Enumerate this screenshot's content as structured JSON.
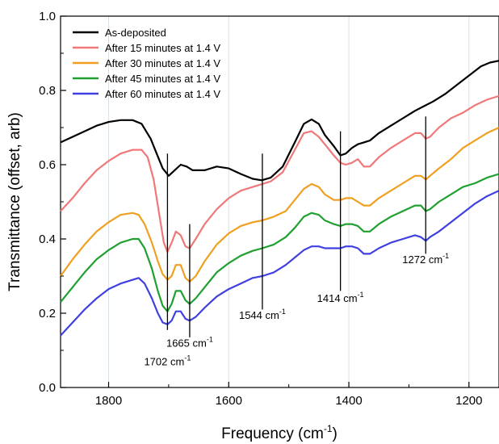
{
  "chart_data": {
    "type": "line",
    "title": "",
    "xlabel": "Frequency (cm",
    "xlabel_sup": "-1",
    "xlabel_close": ")",
    "ylabel": "Transmittance (offset, arb)",
    "xlim": [
      1880,
      1150
    ],
    "ylim": [
      0.0,
      1.0
    ],
    "x_reversed": true,
    "x_ticks": [
      1800,
      1600,
      1400,
      1200
    ],
    "x_tick_labels": [
      "1800",
      "1600",
      "1400",
      "1200"
    ],
    "y_ticks": [
      0.0,
      0.2,
      0.4,
      0.6,
      0.8,
      1.0
    ],
    "y_tick_labels": [
      "0.0",
      "0.2",
      "0.4",
      "0.6",
      "0.8",
      "1.0"
    ],
    "grid": "vertical-minor",
    "legend_position": "top-left",
    "series": [
      {
        "name": "As-deposited",
        "color": "#000000",
        "points": [
          [
            1880,
            0.66
          ],
          [
            1860,
            0.675
          ],
          [
            1840,
            0.69
          ],
          [
            1820,
            0.705
          ],
          [
            1800,
            0.715
          ],
          [
            1780,
            0.72
          ],
          [
            1760,
            0.72
          ],
          [
            1745,
            0.71
          ],
          [
            1730,
            0.67
          ],
          [
            1720,
            0.63
          ],
          [
            1710,
            0.59
          ],
          [
            1700,
            0.57
          ],
          [
            1690,
            0.585
          ],
          [
            1680,
            0.6
          ],
          [
            1670,
            0.595
          ],
          [
            1660,
            0.585
          ],
          [
            1640,
            0.585
          ],
          [
            1620,
            0.595
          ],
          [
            1600,
            0.59
          ],
          [
            1580,
            0.575
          ],
          [
            1560,
            0.562
          ],
          [
            1545,
            0.558
          ],
          [
            1530,
            0.565
          ],
          [
            1510,
            0.595
          ],
          [
            1490,
            0.66
          ],
          [
            1475,
            0.71
          ],
          [
            1462,
            0.722
          ],
          [
            1450,
            0.71
          ],
          [
            1440,
            0.68
          ],
          [
            1425,
            0.65
          ],
          [
            1414,
            0.625
          ],
          [
            1405,
            0.63
          ],
          [
            1395,
            0.645
          ],
          [
            1385,
            0.655
          ],
          [
            1375,
            0.66
          ],
          [
            1365,
            0.665
          ],
          [
            1350,
            0.685
          ],
          [
            1330,
            0.705
          ],
          [
            1310,
            0.725
          ],
          [
            1290,
            0.745
          ],
          [
            1272,
            0.76
          ],
          [
            1260,
            0.77
          ],
          [
            1240,
            0.79
          ],
          [
            1220,
            0.815
          ],
          [
            1200,
            0.84
          ],
          [
            1180,
            0.865
          ],
          [
            1165,
            0.875
          ],
          [
            1150,
            0.88
          ]
        ]
      },
      {
        "name": "After 15 minutes at 1.4 V",
        "color": "#f07878",
        "points": [
          [
            1880,
            0.475
          ],
          [
            1860,
            0.51
          ],
          [
            1840,
            0.55
          ],
          [
            1820,
            0.585
          ],
          [
            1800,
            0.61
          ],
          [
            1780,
            0.63
          ],
          [
            1760,
            0.64
          ],
          [
            1745,
            0.64
          ],
          [
            1735,
            0.62
          ],
          [
            1725,
            0.56
          ],
          [
            1715,
            0.46
          ],
          [
            1708,
            0.39
          ],
          [
            1702,
            0.365
          ],
          [
            1695,
            0.39
          ],
          [
            1688,
            0.42
          ],
          [
            1680,
            0.41
          ],
          [
            1672,
            0.38
          ],
          [
            1665,
            0.375
          ],
          [
            1655,
            0.4
          ],
          [
            1640,
            0.44
          ],
          [
            1620,
            0.48
          ],
          [
            1600,
            0.51
          ],
          [
            1580,
            0.53
          ],
          [
            1560,
            0.54
          ],
          [
            1544,
            0.548
          ],
          [
            1530,
            0.555
          ],
          [
            1510,
            0.58
          ],
          [
            1490,
            0.64
          ],
          [
            1475,
            0.685
          ],
          [
            1462,
            0.69
          ],
          [
            1450,
            0.675
          ],
          [
            1440,
            0.655
          ],
          [
            1425,
            0.625
          ],
          [
            1414,
            0.605
          ],
          [
            1405,
            0.6
          ],
          [
            1395,
            0.605
          ],
          [
            1385,
            0.615
          ],
          [
            1375,
            0.595
          ],
          [
            1365,
            0.595
          ],
          [
            1350,
            0.62
          ],
          [
            1330,
            0.645
          ],
          [
            1310,
            0.665
          ],
          [
            1290,
            0.685
          ],
          [
            1280,
            0.685
          ],
          [
            1272,
            0.67
          ],
          [
            1265,
            0.675
          ],
          [
            1250,
            0.7
          ],
          [
            1230,
            0.725
          ],
          [
            1210,
            0.74
          ],
          [
            1190,
            0.76
          ],
          [
            1170,
            0.775
          ],
          [
            1150,
            0.785
          ]
        ]
      },
      {
        "name": "After 30 minutes at 1.4 V",
        "color": "#f0a020",
        "points": [
          [
            1880,
            0.3
          ],
          [
            1860,
            0.345
          ],
          [
            1840,
            0.385
          ],
          [
            1820,
            0.42
          ],
          [
            1800,
            0.445
          ],
          [
            1780,
            0.465
          ],
          [
            1760,
            0.47
          ],
          [
            1750,
            0.465
          ],
          [
            1740,
            0.44
          ],
          [
            1728,
            0.39
          ],
          [
            1718,
            0.34
          ],
          [
            1710,
            0.305
          ],
          [
            1702,
            0.29
          ],
          [
            1695,
            0.3
          ],
          [
            1688,
            0.33
          ],
          [
            1680,
            0.33
          ],
          [
            1672,
            0.295
          ],
          [
            1665,
            0.285
          ],
          [
            1655,
            0.3
          ],
          [
            1640,
            0.34
          ],
          [
            1620,
            0.385
          ],
          [
            1600,
            0.415
          ],
          [
            1580,
            0.435
          ],
          [
            1560,
            0.445
          ],
          [
            1544,
            0.45
          ],
          [
            1525,
            0.46
          ],
          [
            1505,
            0.475
          ],
          [
            1490,
            0.505
          ],
          [
            1475,
            0.535
          ],
          [
            1462,
            0.548
          ],
          [
            1450,
            0.54
          ],
          [
            1440,
            0.52
          ],
          [
            1425,
            0.505
          ],
          [
            1414,
            0.505
          ],
          [
            1405,
            0.51
          ],
          [
            1395,
            0.51
          ],
          [
            1385,
            0.5
          ],
          [
            1375,
            0.49
          ],
          [
            1365,
            0.49
          ],
          [
            1350,
            0.51
          ],
          [
            1330,
            0.53
          ],
          [
            1310,
            0.55
          ],
          [
            1290,
            0.57
          ],
          [
            1280,
            0.57
          ],
          [
            1272,
            0.56
          ],
          [
            1265,
            0.57
          ],
          [
            1250,
            0.59
          ],
          [
            1230,
            0.615
          ],
          [
            1210,
            0.645
          ],
          [
            1190,
            0.665
          ],
          [
            1170,
            0.685
          ],
          [
            1150,
            0.7
          ]
        ]
      },
      {
        "name": "After 45 minutes at 1.4 V",
        "color": "#20a030",
        "points": [
          [
            1880,
            0.23
          ],
          [
            1860,
            0.27
          ],
          [
            1840,
            0.31
          ],
          [
            1820,
            0.345
          ],
          [
            1800,
            0.37
          ],
          [
            1780,
            0.39
          ],
          [
            1760,
            0.4
          ],
          [
            1750,
            0.4
          ],
          [
            1740,
            0.375
          ],
          [
            1728,
            0.32
          ],
          [
            1718,
            0.26
          ],
          [
            1710,
            0.22
          ],
          [
            1702,
            0.205
          ],
          [
            1695,
            0.225
          ],
          [
            1688,
            0.26
          ],
          [
            1680,
            0.26
          ],
          [
            1672,
            0.235
          ],
          [
            1665,
            0.225
          ],
          [
            1655,
            0.24
          ],
          [
            1640,
            0.27
          ],
          [
            1620,
            0.31
          ],
          [
            1600,
            0.335
          ],
          [
            1580,
            0.355
          ],
          [
            1560,
            0.368
          ],
          [
            1544,
            0.375
          ],
          [
            1525,
            0.385
          ],
          [
            1505,
            0.405
          ],
          [
            1490,
            0.43
          ],
          [
            1475,
            0.46
          ],
          [
            1462,
            0.47
          ],
          [
            1450,
            0.465
          ],
          [
            1440,
            0.45
          ],
          [
            1425,
            0.44
          ],
          [
            1414,
            0.435
          ],
          [
            1405,
            0.44
          ],
          [
            1395,
            0.44
          ],
          [
            1385,
            0.435
          ],
          [
            1375,
            0.42
          ],
          [
            1365,
            0.42
          ],
          [
            1350,
            0.44
          ],
          [
            1330,
            0.46
          ],
          [
            1310,
            0.475
          ],
          [
            1290,
            0.49
          ],
          [
            1280,
            0.49
          ],
          [
            1272,
            0.475
          ],
          [
            1265,
            0.48
          ],
          [
            1250,
            0.5
          ],
          [
            1230,
            0.52
          ],
          [
            1210,
            0.54
          ],
          [
            1190,
            0.55
          ],
          [
            1170,
            0.565
          ],
          [
            1150,
            0.575
          ]
        ]
      },
      {
        "name": "After 60 minutes at 1.4 V",
        "color": "#4040e0",
        "points": [
          [
            1880,
            0.14
          ],
          [
            1860,
            0.175
          ],
          [
            1840,
            0.21
          ],
          [
            1820,
            0.24
          ],
          [
            1800,
            0.265
          ],
          [
            1780,
            0.28
          ],
          [
            1760,
            0.29
          ],
          [
            1750,
            0.295
          ],
          [
            1740,
            0.28
          ],
          [
            1728,
            0.24
          ],
          [
            1718,
            0.2
          ],
          [
            1710,
            0.175
          ],
          [
            1702,
            0.17
          ],
          [
            1695,
            0.18
          ],
          [
            1688,
            0.205
          ],
          [
            1680,
            0.205
          ],
          [
            1672,
            0.185
          ],
          [
            1665,
            0.18
          ],
          [
            1655,
            0.19
          ],
          [
            1640,
            0.215
          ],
          [
            1620,
            0.245
          ],
          [
            1600,
            0.265
          ],
          [
            1580,
            0.28
          ],
          [
            1560,
            0.295
          ],
          [
            1544,
            0.3
          ],
          [
            1525,
            0.31
          ],
          [
            1505,
            0.33
          ],
          [
            1490,
            0.35
          ],
          [
            1475,
            0.37
          ],
          [
            1462,
            0.38
          ],
          [
            1450,
            0.38
          ],
          [
            1440,
            0.375
          ],
          [
            1425,
            0.375
          ],
          [
            1414,
            0.375
          ],
          [
            1405,
            0.38
          ],
          [
            1395,
            0.38
          ],
          [
            1385,
            0.375
          ],
          [
            1375,
            0.36
          ],
          [
            1365,
            0.36
          ],
          [
            1350,
            0.375
          ],
          [
            1330,
            0.39
          ],
          [
            1310,
            0.4
          ],
          [
            1290,
            0.41
          ],
          [
            1280,
            0.405
          ],
          [
            1272,
            0.395
          ],
          [
            1265,
            0.405
          ],
          [
            1250,
            0.42
          ],
          [
            1230,
            0.445
          ],
          [
            1210,
            0.47
          ],
          [
            1190,
            0.495
          ],
          [
            1170,
            0.515
          ],
          [
            1150,
            0.53
          ]
        ]
      }
    ],
    "annotations": [
      {
        "x": 1702,
        "y_top": 0.63,
        "y_bottom": 0.155,
        "label": "1702 cm",
        "sup": "-1",
        "label_y": 0.06
      },
      {
        "x": 1665,
        "y_top": 0.44,
        "y_bottom": 0.135,
        "label": "1665 cm",
        "sup": "-1",
        "label_y": 0.11
      },
      {
        "x": 1544,
        "y_top": 0.63,
        "y_bottom": 0.21,
        "label": "1544 cm",
        "sup": "-1",
        "label_y": 0.185
      },
      {
        "x": 1414,
        "y_top": 0.69,
        "y_bottom": 0.26,
        "label": "1414 cm",
        "sup": "-1",
        "label_y": 0.23
      },
      {
        "x": 1272,
        "y_top": 0.73,
        "y_bottom": 0.36,
        "label": "1272 cm",
        "sup": "-1",
        "label_y": 0.335
      }
    ]
  }
}
